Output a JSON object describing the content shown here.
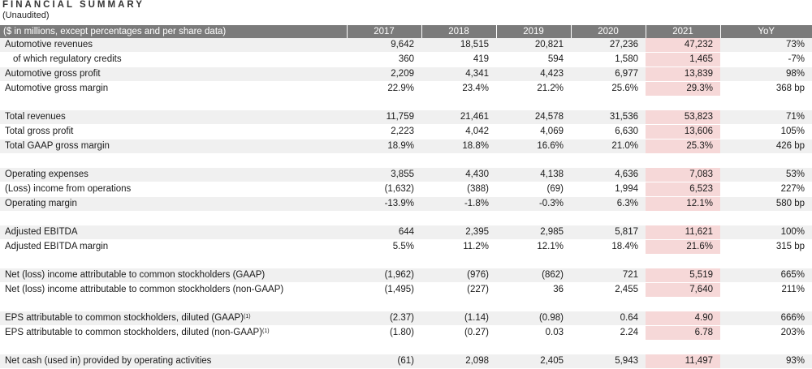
{
  "title": "FINANCIAL SUMMARY",
  "subtitle": "(Unaudited)",
  "table": {
    "header": {
      "label": "($ in millions, except percentages and per share data)",
      "y2017": "2017",
      "y2018": "2018",
      "y2019": "2019",
      "y2020": "2020",
      "y2021": "2021",
      "yoy": "YoY"
    },
    "rows": [
      {
        "label": "Automotive revenues",
        "v2017": "9,642",
        "v2018": "18,515",
        "v2019": "20,821",
        "v2020": "27,236",
        "v2021": "47,232",
        "yoy": "73%"
      },
      {
        "label": "of which regulatory credits",
        "v2017": "360",
        "v2018": "419",
        "v2019": "594",
        "v2020": "1,580",
        "v2021": "1,465",
        "yoy": "-7%"
      },
      {
        "label": "Automotive gross profit",
        "v2017": "2,209",
        "v2018": "4,341",
        "v2019": "4,423",
        "v2020": "6,977",
        "v2021": "13,839",
        "yoy": "98%"
      },
      {
        "label": "Automotive gross margin",
        "v2017": "22.9%",
        "v2018": "23.4%",
        "v2019": "21.2%",
        "v2020": "25.6%",
        "v2021": "29.3%",
        "yoy": "368 bp"
      },
      {
        "label": "Total revenues",
        "v2017": "11,759",
        "v2018": "21,461",
        "v2019": "24,578",
        "v2020": "31,536",
        "v2021": "53,823",
        "yoy": "71%"
      },
      {
        "label": "Total gross profit",
        "v2017": "2,223",
        "v2018": "4,042",
        "v2019": "4,069",
        "v2020": "6,630",
        "v2021": "13,606",
        "yoy": "105%"
      },
      {
        "label": "Total GAAP gross margin",
        "v2017": "18.9%",
        "v2018": "18.8%",
        "v2019": "16.6%",
        "v2020": "21.0%",
        "v2021": "25.3%",
        "yoy": "426 bp"
      },
      {
        "label": "Operating expenses",
        "v2017": "3,855",
        "v2018": "4,430",
        "v2019": "4,138",
        "v2020": "4,636",
        "v2021": "7,083",
        "yoy": "53%"
      },
      {
        "label": "(Loss) income from operations",
        "v2017": "(1,632)",
        "v2018": "(388)",
        "v2019": "(69)",
        "v2020": "1,994",
        "v2021": "6,523",
        "yoy": "227%"
      },
      {
        "label": "Operating margin",
        "v2017": "-13.9%",
        "v2018": "-1.8%",
        "v2019": "-0.3%",
        "v2020": "6.3%",
        "v2021": "12.1%",
        "yoy": "580 bp"
      },
      {
        "label": "Adjusted EBITDA",
        "v2017": "644",
        "v2018": "2,395",
        "v2019": "2,985",
        "v2020": "5,817",
        "v2021": "11,621",
        "yoy": "100%"
      },
      {
        "label": "Adjusted EBITDA margin",
        "v2017": "5.5%",
        "v2018": "11.2%",
        "v2019": "12.1%",
        "v2020": "18.4%",
        "v2021": "21.6%",
        "yoy": "315 bp"
      },
      {
        "label": "Net (loss) income attributable to common stockholders (GAAP)",
        "v2017": "(1,962)",
        "v2018": "(976)",
        "v2019": "(862)",
        "v2020": "721",
        "v2021": "5,519",
        "yoy": "665%"
      },
      {
        "label": "Net (loss) income attributable to common stockholders (non-GAAP)",
        "v2017": "(1,495)",
        "v2018": "(227)",
        "v2019": "36",
        "v2020": "2,455",
        "v2021": "7,640",
        "yoy": "211%"
      },
      {
        "label": "EPS attributable to common stockholders, diluted (GAAP)",
        "note": "(1)",
        "v2017": "(2.37)",
        "v2018": "(1.14)",
        "v2019": "(0.98)",
        "v2020": "0.64",
        "v2021": "4.90",
        "yoy": "666%"
      },
      {
        "label": "EPS attributable to common stockholders, diluted (non-GAAP)",
        "note": "(1)",
        "v2017": "(1.80)",
        "v2018": "(0.27)",
        "v2019": "0.03",
        "v2020": "2.24",
        "v2021": "6.78",
        "yoy": "203%"
      },
      {
        "label": "Net cash (used in) provided by operating activities",
        "v2017": "(61)",
        "v2018": "2,098",
        "v2019": "2,405",
        "v2020": "5,943",
        "v2021": "11,497",
        "yoy": "93%"
      }
    ]
  },
  "colors": {
    "header_bg": "#7b7b7b",
    "row_stripe": "#f0f0f0",
    "highlight_2021": "#f6d8d8"
  }
}
